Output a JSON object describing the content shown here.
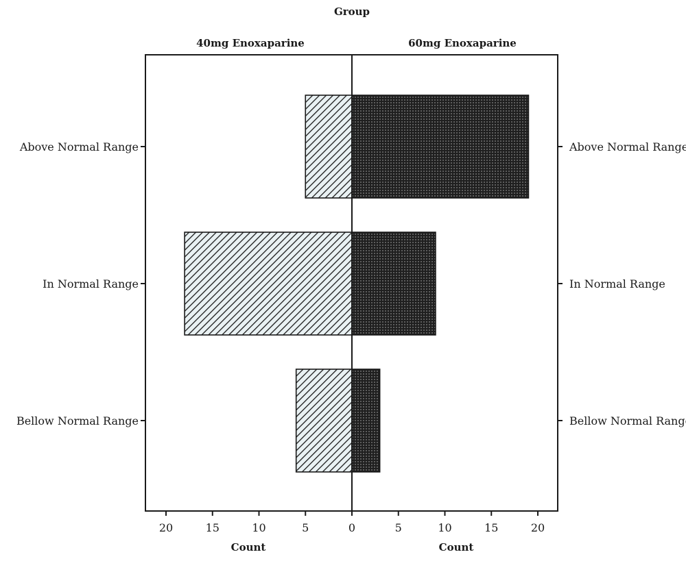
{
  "chart_data": {
    "type": "bar",
    "subtype": "population-pyramid (back-to-back horizontal bars)",
    "title": "Group",
    "categories": [
      "Above Normal Range",
      "In Normal Range",
      "Bellow Normal Range"
    ],
    "series": [
      {
        "name": "40mg Enoxaparine",
        "side": "left",
        "values": [
          5,
          18,
          6
        ],
        "pattern": "diagonal-hatch",
        "color": "#1a1a1a",
        "fill": "#e8f0f2"
      },
      {
        "name": "60mg Enoxaparine",
        "side": "right",
        "values": [
          19,
          9,
          3
        ],
        "pattern": "dense-crosshatch",
        "color": "#1a1a1a",
        "fill": "#2b2b2b"
      }
    ],
    "xlabel_left": "Count",
    "xlabel_right": "Count",
    "xlim": [
      0,
      22
    ],
    "xticks": [
      0,
      5,
      10,
      15,
      20
    ],
    "grid": false,
    "legend": "none"
  }
}
